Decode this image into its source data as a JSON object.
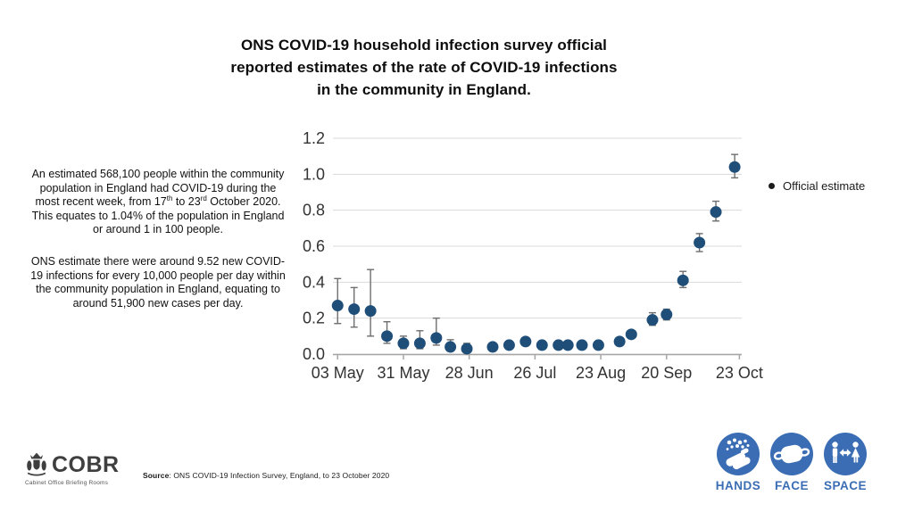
{
  "title": {
    "text": "ONS COVID-19 household infection survey official\nreported estimates of the rate of COVID-19 infections\nin the community in England."
  },
  "infobox": {
    "para1": {
      "part1": "An estimated 568,100 people within the community population in England had COVID-19 during the most recent week, from 17",
      "sup1": "th",
      "part2": " to 23",
      "sup2": "rd",
      "part3": " October 2020. This equates to 1.04% of the population in England or around 1 in 100 people."
    },
    "para2": "ONS estimate there were around 9.52 new COVID-19 infections for every 10,000 people per day within the community population in England, equating to around 51,900 new cases per day."
  },
  "chart_data": {
    "type": "scatter",
    "title": "",
    "xlabel": "",
    "ylabel": "",
    "grid": true,
    "ylim": [
      0,
      1.2
    ],
    "xlim_days": [
      -2,
      172
    ],
    "y_ticks": [
      {
        "value": 0.0,
        "label": "0.0"
      },
      {
        "value": 0.2,
        "label": "0.2"
      },
      {
        "value": 0.4,
        "label": "0.4"
      },
      {
        "value": 0.6,
        "label": "0.6"
      },
      {
        "value": 0.8,
        "label": "0.8"
      },
      {
        "value": 1.0,
        "label": "1.0"
      },
      {
        "value": 1.2,
        "label": "1.2"
      }
    ],
    "x_ticks": [
      {
        "day": 0,
        "label": "03 May"
      },
      {
        "day": 28,
        "label": "31 May"
      },
      {
        "day": 56,
        "label": "28 Jun"
      },
      {
        "day": 84,
        "label": "26 Jul"
      },
      {
        "day": 112,
        "label": "23 Aug"
      },
      {
        "day": 140,
        "label": "20 Sep"
      },
      {
        "day": 171,
        "label": "23 Oct"
      }
    ],
    "legend": {
      "label": "Official estimate",
      "position": "right"
    },
    "colors": {
      "point": "#1f4e79",
      "error": "#6e6e6e",
      "grid": "#d9d9d9",
      "axis": "#a6a6a6",
      "tick_label": "#333333"
    },
    "series": [
      {
        "name": "Official estimate",
        "points": [
          {
            "day": 0,
            "value": 0.27,
            "ci_low": 0.17,
            "ci_high": 0.42
          },
          {
            "day": 7,
            "value": 0.25,
            "ci_low": 0.15,
            "ci_high": 0.37
          },
          {
            "day": 14,
            "value": 0.24,
            "ci_low": 0.1,
            "ci_high": 0.47
          },
          {
            "day": 21,
            "value": 0.1,
            "ci_low": 0.06,
            "ci_high": 0.18
          },
          {
            "day": 28,
            "value": 0.06,
            "ci_low": 0.03,
            "ci_high": 0.1
          },
          {
            "day": 35,
            "value": 0.06,
            "ci_low": 0.03,
            "ci_high": 0.13
          },
          {
            "day": 42,
            "value": 0.09,
            "ci_low": 0.05,
            "ci_high": 0.2
          },
          {
            "day": 48,
            "value": 0.04,
            "ci_low": 0.02,
            "ci_high": 0.08
          },
          {
            "day": 55,
            "value": 0.03,
            "ci_low": 0.02,
            "ci_high": 0.06
          },
          {
            "day": 66,
            "value": 0.04,
            "ci_low": 0.03,
            "ci_high": 0.06
          },
          {
            "day": 73,
            "value": 0.05,
            "ci_low": 0.04,
            "ci_high": 0.07
          },
          {
            "day": 80,
            "value": 0.07,
            "ci_low": 0.05,
            "ci_high": 0.09
          },
          {
            "day": 87,
            "value": 0.05,
            "ci_low": 0.04,
            "ci_high": 0.07
          },
          {
            "day": 94,
            "value": 0.05,
            "ci_low": 0.04,
            "ci_high": 0.07
          },
          {
            "day": 98,
            "value": 0.05,
            "ci_low": 0.04,
            "ci_high": 0.07
          },
          {
            "day": 104,
            "value": 0.05,
            "ci_low": 0.04,
            "ci_high": 0.07
          },
          {
            "day": 111,
            "value": 0.05,
            "ci_low": 0.04,
            "ci_high": 0.07
          },
          {
            "day": 120,
            "value": 0.07,
            "ci_low": 0.06,
            "ci_high": 0.09
          },
          {
            "day": 125,
            "value": 0.11,
            "ci_low": 0.09,
            "ci_high": 0.13
          },
          {
            "day": 134,
            "value": 0.19,
            "ci_low": 0.16,
            "ci_high": 0.23
          },
          {
            "day": 140,
            "value": 0.22,
            "ci_low": 0.19,
            "ci_high": 0.25
          },
          {
            "day": 147,
            "value": 0.41,
            "ci_low": 0.37,
            "ci_high": 0.46
          },
          {
            "day": 154,
            "value": 0.62,
            "ci_low": 0.57,
            "ci_high": 0.67
          },
          {
            "day": 161,
            "value": 0.79,
            "ci_low": 0.74,
            "ci_high": 0.85
          },
          {
            "day": 169,
            "value": 1.04,
            "ci_low": 0.98,
            "ci_high": 1.11
          }
        ]
      }
    ]
  },
  "footer": {
    "logo": {
      "text": "COBR",
      "subtitle": "Cabinet Office Briefing Rooms"
    },
    "source_label": "Source",
    "source_rest": ": ONS COVID-19 Infection Survey, England, to 23 October 2020",
    "campaign": {
      "blue": "#3a6db4",
      "items": [
        {
          "label": "HANDS"
        },
        {
          "label": "FACE"
        },
        {
          "label": "SPACE"
        }
      ]
    }
  }
}
